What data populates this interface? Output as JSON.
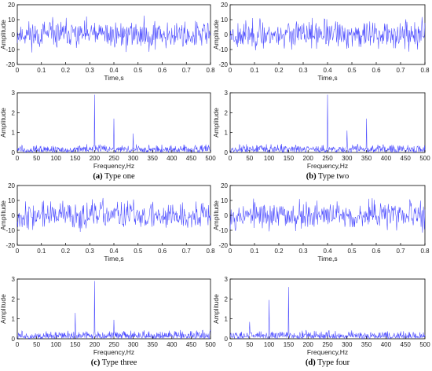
{
  "chart_data": [
    {
      "type": "line",
      "id": "a_time",
      "xlabel": "Time,s",
      "ylabel": "Amplitude",
      "xlim": [
        0,
        0.8
      ],
      "ylim": [
        -20,
        20
      ],
      "xticks": [
        "0",
        "0.1",
        "0.2",
        "0.3",
        "0.4",
        "0.5",
        "0.6",
        "0.7",
        "0.8"
      ],
      "yticks": [
        "-20",
        "-10",
        "0",
        "10",
        "20"
      ],
      "signal": {
        "kind": "noise",
        "seed": 11,
        "n": 400,
        "amplitude_range": [
          -12,
          14
        ]
      },
      "color": "#4a4aff"
    },
    {
      "type": "line",
      "id": "b_time",
      "xlabel": "Time,s",
      "ylabel": "Amplitude",
      "xlim": [
        0,
        0.8
      ],
      "ylim": [
        -20,
        20
      ],
      "xticks": [
        "0",
        "0.1",
        "0.2",
        "0.3",
        "0.4",
        "0.5",
        "0.6",
        "0.7",
        "0.8"
      ],
      "yticks": [
        "-20",
        "-10",
        "0",
        "10",
        "20"
      ],
      "signal": {
        "kind": "noise",
        "seed": 23,
        "n": 400,
        "amplitude_range": [
          -12,
          13
        ]
      },
      "color": "#4a4aff"
    },
    {
      "type": "line",
      "id": "a_freq",
      "xlabel": "Frequency,Hz",
      "ylabel": "Amplitude",
      "xlim": [
        0,
        500
      ],
      "ylim": [
        0,
        3
      ],
      "xticks": [
        "0",
        "50",
        "100",
        "150",
        "200",
        "250",
        "300",
        "350",
        "400",
        "450",
        "500"
      ],
      "yticks": [
        "0",
        "1",
        "2",
        "3"
      ],
      "peaks": [
        {
          "x": 200,
          "y": 2.9
        },
        {
          "x": 250,
          "y": 1.7
        },
        {
          "x": 300,
          "y": 0.95
        }
      ],
      "floor_max": 0.35,
      "color": "#4a4aff"
    },
    {
      "type": "line",
      "id": "b_freq",
      "xlabel": "Frequency,Hz",
      "ylabel": "Amplitude",
      "xlim": [
        0,
        500
      ],
      "ylim": [
        0,
        3
      ],
      "xticks": [
        "0",
        "50",
        "100",
        "150",
        "200",
        "250",
        "300",
        "350",
        "400",
        "450",
        "500"
      ],
      "yticks": [
        "0",
        "1",
        "2",
        "3"
      ],
      "peaks": [
        {
          "x": 250,
          "y": 2.9
        },
        {
          "x": 300,
          "y": 1.1
        },
        {
          "x": 350,
          "y": 1.7
        }
      ],
      "floor_max": 0.35,
      "color": "#4a4aff"
    },
    {
      "type": "line",
      "id": "c_time",
      "xlabel": "Time,s",
      "ylabel": "Amplitude",
      "xlim": [
        0,
        0.8
      ],
      "ylim": [
        -20,
        20
      ],
      "xticks": [
        "0",
        "0.1",
        "0.2",
        "0.3",
        "0.4",
        "0.5",
        "0.6",
        "0.7",
        "0.8"
      ],
      "yticks": [
        "-20",
        "-10",
        "0",
        "10",
        "20"
      ],
      "signal": {
        "kind": "noise",
        "seed": 37,
        "n": 400,
        "amplitude_range": [
          -13,
          13
        ]
      },
      "color": "#4a4aff"
    },
    {
      "type": "line",
      "id": "d_time",
      "xlabel": "Time,s",
      "ylabel": "Amplitude",
      "xlim": [
        0,
        0.8
      ],
      "ylim": [
        -20,
        20
      ],
      "xticks": [
        "0",
        "0.1",
        "0.2",
        "0.3",
        "0.4",
        "0.5",
        "0.6",
        "0.7",
        "0.8"
      ],
      "yticks": [
        "-20",
        "-10",
        "0",
        "10",
        "20"
      ],
      "signal": {
        "kind": "noise",
        "seed": 53,
        "n": 400,
        "amplitude_range": [
          -13,
          14
        ]
      },
      "color": "#4a4aff"
    },
    {
      "type": "line",
      "id": "c_freq",
      "xlabel": "Frequency,Hz",
      "ylabel": "Amplitude",
      "xlim": [
        0,
        500
      ],
      "ylim": [
        0,
        3
      ],
      "xticks": [
        "0",
        "50",
        "100",
        "150",
        "200",
        "250",
        "300",
        "350",
        "400",
        "450",
        "500"
      ],
      "yticks": [
        "0",
        "1",
        "2",
        "3"
      ],
      "peaks": [
        {
          "x": 150,
          "y": 1.3
        },
        {
          "x": 200,
          "y": 2.9
        },
        {
          "x": 250,
          "y": 0.95
        }
      ],
      "floor_max": 0.35,
      "color": "#4a4aff"
    },
    {
      "type": "line",
      "id": "d_freq",
      "xlabel": "Frequency,Hz",
      "ylabel": "Amplitude",
      "xlim": [
        0,
        500
      ],
      "ylim": [
        0,
        3
      ],
      "xticks": [
        "0",
        "50",
        "100",
        "150",
        "200",
        "250",
        "300",
        "350",
        "400",
        "450",
        "500"
      ],
      "yticks": [
        "0",
        "1",
        "2",
        "3"
      ],
      "peaks": [
        {
          "x": 50,
          "y": 0.85
        },
        {
          "x": 100,
          "y": 1.95
        },
        {
          "x": 150,
          "y": 2.6
        }
      ],
      "floor_max": 0.35,
      "color": "#4a4aff"
    }
  ],
  "captions": [
    {
      "letter": "(a)",
      "text": " Type one"
    },
    {
      "letter": "(b)",
      "text": " Type two"
    },
    {
      "letter": "(c)",
      "text": " Type three"
    },
    {
      "letter": "(d)",
      "text": " Type four"
    }
  ]
}
